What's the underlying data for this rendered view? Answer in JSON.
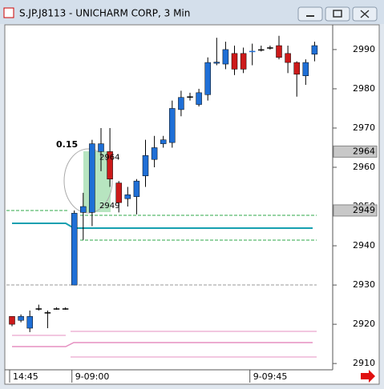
{
  "window": {
    "title": "S.JP.J8113 - UNICHARM CORP, 3 Min"
  },
  "chart_data": {
    "type": "candlestick",
    "categories": [
      "14:45",
      null,
      null,
      null,
      null,
      null,
      null,
      "9-09:00",
      null,
      null,
      null,
      null,
      null,
      null,
      null,
      null,
      null,
      null,
      null,
      null,
      null,
      null,
      null,
      null,
      null,
      null,
      null,
      "9-09:45",
      null,
      null,
      null,
      null,
      null,
      null,
      null
    ],
    "open": [
      2922,
      2921,
      2919,
      2924,
      2923,
      2924,
      2924,
      2930,
      2948.5,
      2948.5,
      2964,
      2964,
      2956,
      2952,
      2952.5,
      2957.8,
      2962,
      2966,
      2966.3,
      2974.7,
      2978,
      2976,
      2978.5,
      2986.5,
      2986.3,
      2989,
      2989,
      2989.5,
      2990,
      2990.5,
      2991,
      2989,
      2986.7,
      2983.3,
      2988.8
    ],
    "high": [
      2922,
      2922.5,
      2923.5,
      2925,
      2923.5,
      2924.3,
      2924.3,
      2949,
      2953.5,
      2967,
      2970,
      2970,
      2956.5,
      2955,
      2957,
      2967,
      2968,
      2968,
      2977,
      2979.5,
      2979,
      2980,
      2988,
      2993,
      2992,
      2991,
      2990.5,
      2991.5,
      2991,
      2991,
      2993.5,
      2991,
      2987,
      2987.5,
      2992
    ],
    "low": [
      2919.5,
      2920.5,
      2918,
      2923.5,
      2919,
      2923.7,
      2923.7,
      2930,
      2941.5,
      2945,
      2959,
      2955,
      2948.5,
      2950,
      2948,
      2955,
      2960,
      2965,
      2965,
      2973,
      2977,
      2975.5,
      2977,
      2986,
      2985,
      2983.5,
      2984,
      2986,
      2989.5,
      2990,
      2987.5,
      2984,
      2978,
      2981,
      2987
    ],
    "close": [
      2920,
      2922,
      2922,
      2924,
      2923,
      2924,
      2924,
      2948.3,
      2950,
      2966,
      2966,
      2957,
      2951,
      2953,
      2956.5,
      2963,
      2965,
      2967,
      2975,
      2977.8,
      2978,
      2979,
      2986.7,
      2986.8,
      2990,
      2985,
      2985,
      2989.6,
      2990,
      2990.5,
      2988,
      2986.7,
      2983.7,
      2986.7,
      2991
    ],
    "up_color": "#1f6fd6",
    "down_color": "#cc1a1a",
    "ylim": [
      2908.4,
      2996.1
    ],
    "yticks": [
      2910,
      2920,
      2930,
      2940,
      2950,
      2960,
      2970,
      2980,
      2990
    ],
    "price_markers": [
      2964,
      2949
    ],
    "annotation": "0.15"
  }
}
